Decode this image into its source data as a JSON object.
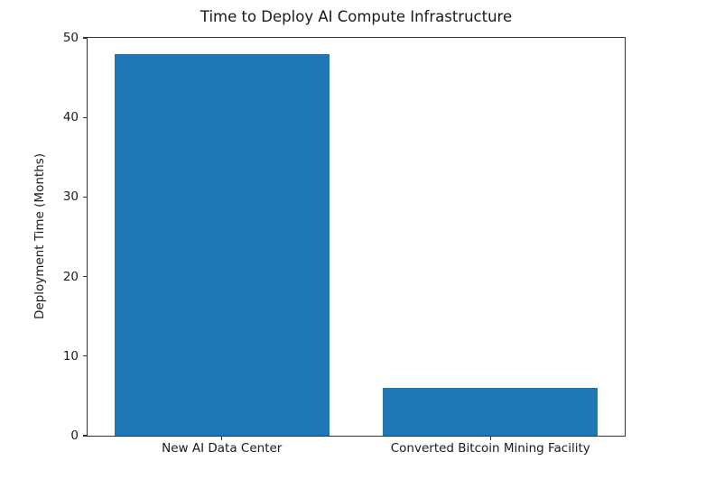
{
  "figure": {
    "background": "#ffffff",
    "spine_color": "#333333",
    "text_color": "#1a1a1a"
  },
  "chart_data": {
    "type": "bar",
    "title": "Time to Deploy AI Compute Infrastructure",
    "xlabel": "",
    "ylabel": "Deployment Time (Months)",
    "categories": [
      "New AI Data Center",
      "Converted Bitcoin Mining Facility"
    ],
    "values": [
      48,
      6
    ],
    "ylim": [
      0,
      50
    ],
    "yticks": [
      0,
      10,
      20,
      30,
      40,
      50
    ],
    "bar_color": "#1f77b4",
    "bar_width_fraction": 0.8,
    "grid": false,
    "legend": "none"
  }
}
